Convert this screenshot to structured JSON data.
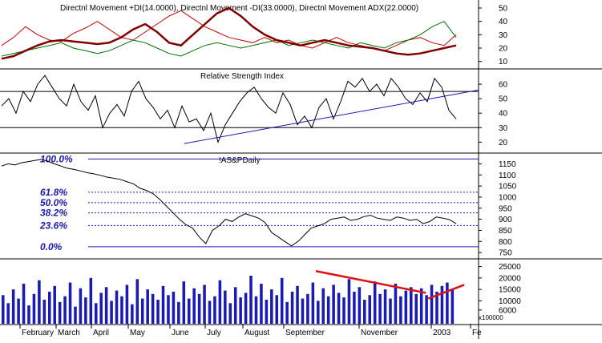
{
  "chart_data": [
    {
      "type": "line",
      "title": "Directnl Movement +DI(14.0000), Directnl Movement -DI(33.0000), Directnl Movement ADX(22.0000)",
      "series": [
        {
          "name": "+DI",
          "color": "#cc0000",
          "values": [
            22,
            28,
            36,
            30,
            26,
            25,
            31,
            35,
            40,
            34,
            28,
            26,
            32,
            38,
            44,
            48,
            42,
            36,
            32,
            28,
            26,
            24,
            28,
            24,
            26,
            22,
            20,
            24,
            28,
            24,
            22,
            20,
            18,
            22,
            26,
            28,
            24,
            22,
            30
          ]
        },
        {
          "name": "-DI",
          "color": "#007000",
          "values": [
            14,
            16,
            18,
            20,
            22,
            24,
            20,
            18,
            16,
            18,
            22,
            26,
            24,
            20,
            16,
            14,
            18,
            22,
            24,
            22,
            20,
            22,
            24,
            26,
            22,
            24,
            26,
            24,
            22,
            20,
            24,
            22,
            20,
            24,
            26,
            30,
            36,
            40,
            28
          ]
        },
        {
          "name": "ADX",
          "color": "#800000",
          "values": [
            12,
            14,
            18,
            22,
            25,
            26,
            25,
            24,
            23,
            24,
            28,
            34,
            38,
            32,
            24,
            22,
            30,
            38,
            46,
            50,
            44,
            36,
            30,
            26,
            24,
            22,
            24,
            26,
            24,
            22,
            21,
            20,
            18,
            16,
            15,
            16,
            18,
            20,
            22
          ]
        }
      ],
      "yticks": [
        10,
        20,
        30,
        40,
        50
      ],
      "ylim": [
        5,
        56
      ]
    },
    {
      "type": "line",
      "title": "Relative Strength Index",
      "series": [
        {
          "name": "RSI",
          "color": "#000000",
          "values": [
            45,
            50,
            40,
            55,
            48,
            60,
            66,
            58,
            50,
            45,
            60,
            48,
            42,
            52,
            30,
            40,
            46,
            38,
            55,
            62,
            50,
            44,
            36,
            42,
            30,
            45,
            34,
            36,
            28,
            40,
            20,
            32,
            40,
            48,
            54,
            58,
            50,
            44,
            40,
            54,
            46,
            32,
            38,
            30,
            44,
            50,
            36,
            48,
            62,
            58,
            64,
            55,
            60,
            52,
            64,
            58,
            50,
            46,
            54,
            48,
            64,
            58,
            42,
            36
          ]
        }
      ],
      "yticks": [
        20,
        30,
        40,
        50,
        60
      ],
      "ylim": [
        13,
        70
      ],
      "trendlines": [
        {
          "from": [
            0.385,
            19
          ],
          "to": [
            1.0,
            56
          ]
        }
      ],
      "reference_lines": [
        30,
        55
      ]
    },
    {
      "type": "line",
      "title": "!AS&PDaily",
      "series": [
        {
          "name": "S&P Daily",
          "color": "#000000",
          "values": [
            1140,
            1150,
            1145,
            1155,
            1160,
            1165,
            1170,
            1162,
            1150,
            1140,
            1130,
            1125,
            1118,
            1110,
            1105,
            1098,
            1090,
            1085,
            1080,
            1070,
            1060,
            1040,
            1030,
            1015,
            990,
            960,
            930,
            900,
            875,
            860,
            820,
            790,
            850,
            870,
            900,
            890,
            910,
            925,
            915,
            905,
            885,
            840,
            820,
            800,
            780,
            800,
            830,
            860,
            870,
            880,
            900,
            905,
            910,
            895,
            900,
            912,
            918,
            905,
            900,
            895,
            910,
            905,
            895,
            900,
            880,
            890,
            910,
            905,
            898,
            880
          ]
        }
      ],
      "yticks": [
        750,
        800,
        850,
        900,
        950,
        1000,
        1050,
        1100,
        1150
      ],
      "ylim": [
        725,
        1195
      ],
      "fibonacci_levels": [
        {
          "label": "100.0%",
          "value": 1172
        },
        {
          "label": "61.8%",
          "value": 1022
        },
        {
          "label": "50.0%",
          "value": 975
        },
        {
          "label": "38.2%",
          "value": 929
        },
        {
          "label": "23.6%",
          "value": 872
        },
        {
          "label": "0.0%",
          "value": 776
        }
      ]
    },
    {
      "type": "bar",
      "title": "",
      "series": [
        {
          "name": "Volume",
          "color": "#1a1ab4",
          "values": [
            12500,
            9000,
            15000,
            11000,
            17500,
            8000,
            13000,
            19000,
            10500,
            14000,
            16500,
            9500,
            12000,
            18000,
            7500,
            15500,
            11500,
            20000,
            9000,
            13500,
            16000,
            10000,
            14500,
            12000,
            17000,
            8500,
            19500,
            11000,
            15000,
            13000,
            10500,
            16500,
            12500,
            14000,
            9500,
            18500,
            11000,
            15500,
            13000,
            17000,
            10000,
            12000,
            19000,
            14500,
            9000,
            16000,
            11500,
            13500,
            21000,
            12000,
            17500,
            10500,
            15000,
            12500,
            20000,
            9500,
            14000,
            16500,
            11000,
            13000,
            18000,
            10000,
            15500,
            12000,
            17000,
            13500,
            11500,
            19500,
            14000,
            16000,
            10500,
            12500,
            18500,
            13000,
            15000,
            11000,
            17500,
            12000,
            14500,
            16000,
            13000,
            15500,
            12500,
            17000,
            14000,
            16500,
            18000,
            15000
          ]
        }
      ],
      "yticks": [
        6000,
        10000,
        15000,
        20000,
        25000
      ],
      "ylim": [
        0,
        28000
      ],
      "scale_label": "x100000",
      "trendlines": [
        {
          "from": [
            0.66,
            23000
          ],
          "to": [
            0.89,
            13500
          ]
        },
        {
          "from": [
            0.895,
            11000
          ],
          "to": [
            0.97,
            17000
          ]
        }
      ]
    }
  ],
  "x_axis": {
    "months": [
      "February",
      "March",
      "April",
      "May",
      "June",
      "July",
      "August",
      "September",
      "November",
      "2003",
      "Fe"
    ]
  }
}
